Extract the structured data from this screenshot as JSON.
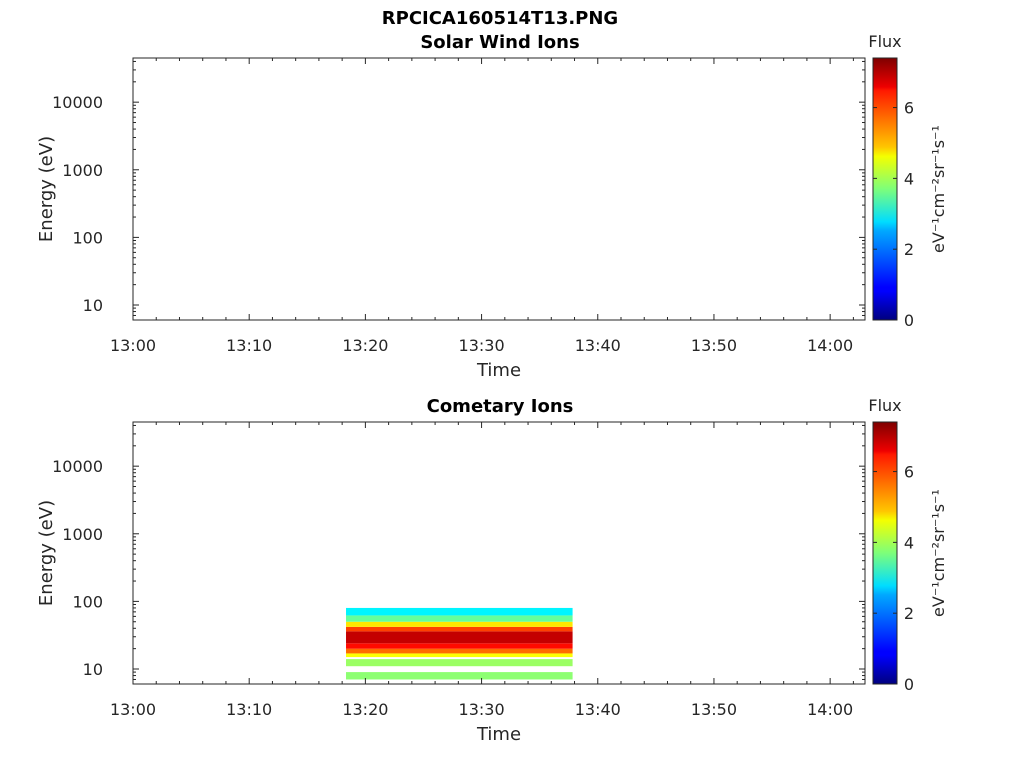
{
  "figure_title": "RPCICA160514T13.PNG",
  "chart_data": [
    {
      "type": "heatmap",
      "title": "Solar Wind Ions",
      "xlabel": "Time",
      "ylabel": "Energy (eV)",
      "x_ticks": [
        "13:00",
        "13:10",
        "13:20",
        "13:30",
        "13:40",
        "13:50",
        "14:00"
      ],
      "x_range_minutes": [
        0,
        63
      ],
      "y_scale": "log",
      "y_ticks": [
        "10",
        "100",
        "1000",
        "10000"
      ],
      "y_range": [
        6,
        45000
      ],
      "colorbar": {
        "title": "Flux",
        "label": "eV⁻¹cm⁻²sr⁻¹s⁻¹",
        "ticks": [
          "0",
          "2",
          "4",
          "6"
        ],
        "range": [
          0,
          7.4
        ],
        "colormap": "jet"
      },
      "data": []
    },
    {
      "type": "heatmap",
      "title": "Cometary Ions",
      "xlabel": "Time",
      "ylabel": "Energy (eV)",
      "x_ticks": [
        "13:00",
        "13:10",
        "13:20",
        "13:30",
        "13:40",
        "13:50",
        "14:00"
      ],
      "x_range_minutes": [
        0,
        63
      ],
      "y_scale": "log",
      "y_ticks": [
        "10",
        "100",
        "1000",
        "10000"
      ],
      "y_range": [
        6,
        45000
      ],
      "colorbar": {
        "title": "Flux",
        "label": "eV⁻¹cm⁻²sr⁻¹s⁻¹",
        "ticks": [
          "0",
          "2",
          "4",
          "6"
        ],
        "range": [
          0,
          7.4
        ],
        "colormap": "jet"
      },
      "data": [
        {
          "t_start": "13:18:20",
          "t_end": "13:37:50",
          "energy_min_eV": 7,
          "energy_max_eV": 9,
          "flux": 3.8
        },
        {
          "t_start": "13:18:20",
          "t_end": "13:37:50",
          "energy_min_eV": 11,
          "energy_max_eV": 14,
          "flux": 3.9
        },
        {
          "t_start": "13:18:20",
          "t_end": "13:37:50",
          "energy_min_eV": 15,
          "energy_max_eV": 17,
          "flux": 4.6
        },
        {
          "t_start": "13:18:20",
          "t_end": "13:37:50",
          "energy_min_eV": 17,
          "energy_max_eV": 20,
          "flux": 5.7
        },
        {
          "t_start": "13:18:20",
          "t_end": "13:37:50",
          "energy_min_eV": 20,
          "energy_max_eV": 24,
          "flux": 6.4
        },
        {
          "t_start": "13:18:20",
          "t_end": "13:37:50",
          "energy_min_eV": 24,
          "energy_max_eV": 36,
          "flux": 6.9
        },
        {
          "t_start": "13:18:20",
          "t_end": "13:37:50",
          "energy_min_eV": 36,
          "energy_max_eV": 42,
          "flux": 6.0
        },
        {
          "t_start": "13:18:20",
          "t_end": "13:37:50",
          "energy_min_eV": 42,
          "energy_max_eV": 50,
          "flux": 4.8
        },
        {
          "t_start": "13:18:20",
          "t_end": "13:37:50",
          "energy_min_eV": 50,
          "energy_max_eV": 62,
          "flux": 3.5
        },
        {
          "t_start": "13:18:20",
          "t_end": "13:37:50",
          "energy_min_eV": 62,
          "energy_max_eV": 80,
          "flux": 2.7
        }
      ]
    }
  ]
}
